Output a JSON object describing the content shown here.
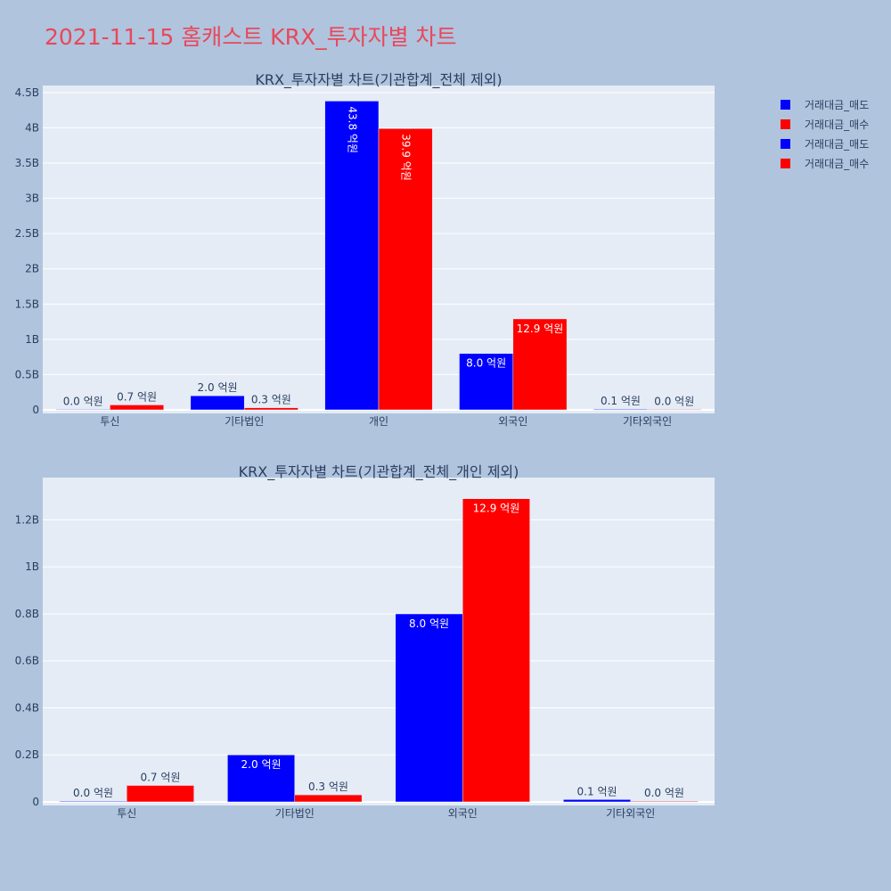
{
  "page_title": "2021-11-15 홈캐스트 KRX_투자자별 차트",
  "legend": [
    {
      "label": "거래대금_매도",
      "color": "#0000ff"
    },
    {
      "label": "거래대금_매수",
      "color": "#ff0000"
    },
    {
      "label": "거래대금_매도",
      "color": "#0000ff"
    },
    {
      "label": "거래대금_매수",
      "color": "#ff0000"
    }
  ],
  "chart_data": [
    {
      "type": "bar",
      "title": "KRX_투자자별 차트(기관합계_전체 제외)",
      "categories": [
        "투신",
        "기타법인",
        "개인",
        "외국인",
        "기타외국인"
      ],
      "series": [
        {
          "name": "거래대금_매도",
          "color": "#0000ff",
          "values": [
            3000000,
            200000000,
            4380000000,
            800000000,
            10000000
          ],
          "labels": [
            "0.0 억원",
            "2.0 억원",
            "43.8 억원",
            "8.0 억원",
            "0.1 억원"
          ]
        },
        {
          "name": "거래대금_매수",
          "color": "#ff0000",
          "values": [
            70000000,
            30000000,
            3990000000,
            1290000000,
            3000000
          ],
          "labels": [
            "0.7 억원",
            "0.3 억원",
            "39.9 억원",
            "12.9 억원",
            "0.0 억원"
          ]
        }
      ],
      "ylim": [
        0,
        4600000000.0
      ],
      "yticks": [
        0,
        500000000.0,
        1000000000.0,
        1500000000.0,
        2000000000.0,
        2500000000.0,
        3000000000.0,
        3500000000.0,
        4000000000.0,
        4500000000.0
      ],
      "ytick_labels": [
        "0",
        "0.5B",
        "1B",
        "1.5B",
        "2B",
        "2.5B",
        "3B",
        "3.5B",
        "4B",
        "4.5B"
      ],
      "grid": true
    },
    {
      "type": "bar",
      "title": "KRX_투자자별 차트(기관합계_전체_개인 제외)",
      "categories": [
        "투신",
        "기타법인",
        "외국인",
        "기타외국인"
      ],
      "series": [
        {
          "name": "거래대금_매도",
          "color": "#0000ff",
          "values": [
            3000000,
            200000000,
            800000000,
            10000000
          ],
          "labels": [
            "0.0 억원",
            "2.0 억원",
            "8.0 억원",
            "0.1 억원"
          ]
        },
        {
          "name": "거래대금_매수",
          "color": "#ff0000",
          "values": [
            70000000,
            30000000,
            1290000000,
            3000000
          ],
          "labels": [
            "0.7 억원",
            "0.3 억원",
            "12.9 억원",
            "0.0 억원"
          ]
        }
      ],
      "ylim": [
        0,
        1380000000.0
      ],
      "yticks": [
        0,
        200000000.0,
        400000000.0,
        600000000.0,
        800000000.0,
        1000000000.0,
        1200000000.0
      ],
      "ytick_labels": [
        "0",
        "0.2B",
        "0.4B",
        "0.6B",
        "0.8B",
        "1B",
        "1.2B"
      ],
      "grid": true
    }
  ]
}
